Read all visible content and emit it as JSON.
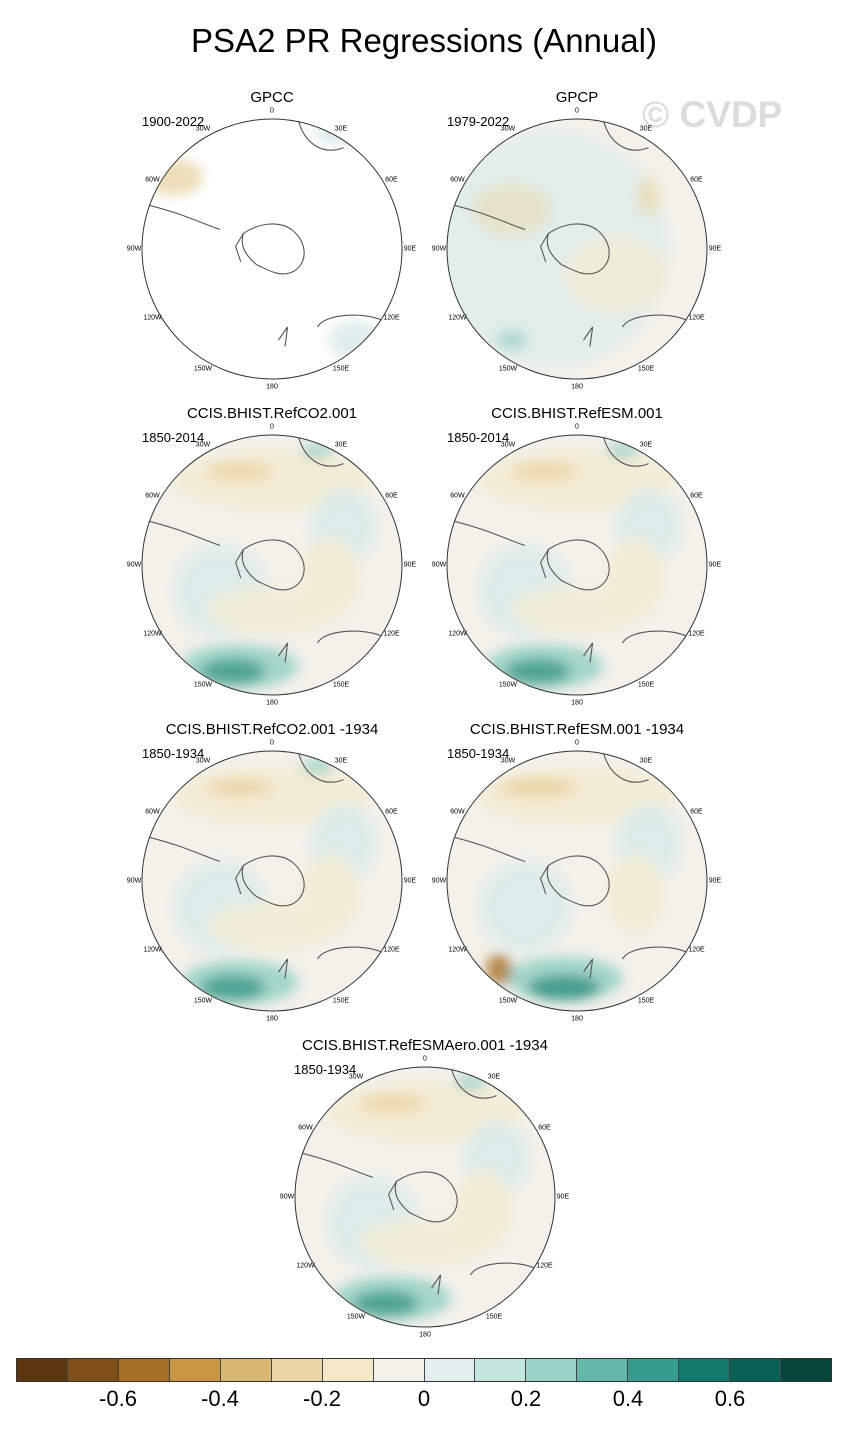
{
  "title": "PSA2 PR Regressions (Annual)",
  "watermark": "© CVDP",
  "lon_labels": {
    "l0": "0",
    "l30e": "30E",
    "l60e": "60E",
    "l90e": "90E",
    "l120e": "120E",
    "l150e": "150E",
    "l180": "180",
    "l150w": "150W",
    "l120w": "120W",
    "l90w": "90W",
    "l60w": "60W",
    "l30w": "30W"
  },
  "colors": {
    "brown_dark": "#a86d20",
    "brown_light": "#ead5a6",
    "tan": "#f4ebd3",
    "neutral": "#f2f1ea",
    "teal_light": "#dbece9",
    "teal_mid": "#9fd4c9",
    "teal_dark": "#3f9b8c",
    "coast": "#555555"
  },
  "panels": [
    {
      "id": "gpcc",
      "title": "GPCC",
      "period": "1900-2022",
      "style": "obs_sparse"
    },
    {
      "id": "gpcp",
      "title": "GPCP",
      "period": "1979-2022",
      "style": "obs"
    },
    {
      "id": "refco2",
      "title": "CCIS.BHIST.RefCO2.001",
      "period": "1850-2014",
      "style": "model"
    },
    {
      "id": "refesm",
      "title": "CCIS.BHIST.RefESM.001",
      "period": "1850-2014",
      "style": "model"
    },
    {
      "id": "refco2_1934",
      "title": "CCIS.BHIST.RefCO2.001 -1934",
      "period": "1850-1934",
      "style": "model"
    },
    {
      "id": "refesm_1934",
      "title": "CCIS.BHIST.RefESM.001 -1934",
      "period": "1850-1934",
      "style": "model_strong"
    },
    {
      "id": "refesmaero_1934",
      "title": "CCIS.BHIST.RefESMAero.001 -1934",
      "period": "1850-1934",
      "style": "model"
    }
  ],
  "colorbar": {
    "colors": [
      "#5c3710",
      "#7f4f17",
      "#a46f23",
      "#c99444",
      "#d9b774",
      "#ead5a6",
      "#f4e8c8",
      "#f2f1ea",
      "#e3efee",
      "#c3e6df",
      "#98d3c8",
      "#66b7aa",
      "#379b8d",
      "#127b6d",
      "#085f53",
      "#05463c"
    ],
    "ticks": [
      "-0.6",
      "-0.4",
      "-0.2",
      "0",
      "0.2",
      "0.4",
      "0.6"
    ]
  }
}
